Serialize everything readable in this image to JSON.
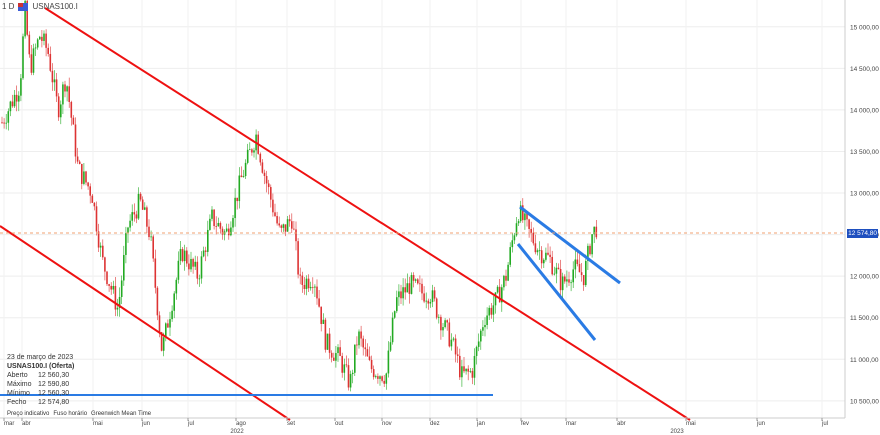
{
  "toolbar": {
    "interval": "1 D",
    "symbol": "USNAS100.I"
  },
  "info": {
    "date": "23 de março de 2023",
    "title": "USNAS100.I (Oferta)",
    "rows": [
      {
        "label": "Aberto",
        "value": "12 560,30"
      },
      {
        "label": "Máximo",
        "value": "12 590,80"
      },
      {
        "label": "Mínimo",
        "value": "12 560,30"
      },
      {
        "label": "Fecho",
        "value": "12 574,80"
      }
    ]
  },
  "footer": {
    "price": "Preço indicativo",
    "tz": "Fuso horário",
    "gmt": "Greenwich Mean Time"
  },
  "current_price_label": "12 574,80",
  "colors": {
    "up": "#22aa22",
    "down": "#dd3333",
    "channel": "#ee1111",
    "pattern": "#2a7be4",
    "price": "#1e4fbf"
  },
  "chart_data": {
    "type": "candlestick",
    "symbol": "USNAS100.I",
    "x_ticks": [
      "mar",
      "abr",
      "mai",
      "jun",
      "jul",
      "ago",
      "set",
      "out",
      "nov",
      "dez",
      "jan",
      "fev",
      "mar",
      "abr",
      "mai",
      "jun",
      "jul"
    ],
    "year_labels": [
      "2022",
      "2023"
    ],
    "y_ticks": [
      "10 500,00",
      "11 000,00",
      "11 500,00",
      "12 000,00",
      "12 500,00",
      "13 000,00",
      "13 500,00",
      "14 000,00",
      "14 500,00",
      "15 000,00"
    ],
    "ylim": [
      10450,
      15250
    ],
    "current_price": 12574.8,
    "anchors": [
      [
        0,
        13800
      ],
      [
        20,
        14300
      ],
      [
        25,
        15200
      ],
      [
        30,
        14500
      ],
      [
        40,
        14900
      ],
      [
        48,
        14700
      ],
      [
        58,
        14000
      ],
      [
        66,
        14400
      ],
      [
        78,
        13300
      ],
      [
        92,
        13000
      ],
      [
        102,
        12200
      ],
      [
        118,
        11600
      ],
      [
        128,
        12600
      ],
      [
        140,
        12900
      ],
      [
        150,
        12500
      ],
      [
        162,
        11100
      ],
      [
        172,
        11700
      ],
      [
        182,
        12300
      ],
      [
        198,
        12000
      ],
      [
        212,
        12700
      ],
      [
        226,
        12500
      ],
      [
        242,
        13200
      ],
      [
        256,
        13700
      ],
      [
        265,
        13200
      ],
      [
        280,
        12500
      ],
      [
        292,
        12700
      ],
      [
        300,
        11900
      ],
      [
        314,
        12000
      ],
      [
        326,
        11200
      ],
      [
        340,
        11000
      ],
      [
        350,
        10700
      ],
      [
        358,
        11300
      ],
      [
        370,
        10900
      ],
      [
        386,
        10800
      ],
      [
        396,
        11700
      ],
      [
        410,
        11900
      ],
      [
        422,
        11800
      ],
      [
        430,
        11800
      ],
      [
        440,
        11500
      ],
      [
        452,
        11200
      ],
      [
        462,
        10800
      ],
      [
        472,
        10850
      ],
      [
        484,
        11500
      ],
      [
        496,
        11700
      ],
      [
        506,
        12000
      ],
      [
        518,
        12800
      ],
      [
        530,
        12500
      ],
      [
        540,
        12300
      ],
      [
        550,
        12200
      ],
      [
        562,
        11900
      ],
      [
        574,
        12100
      ],
      [
        584,
        12000
      ],
      [
        592,
        12500
      ],
      [
        597,
        12600
      ]
    ]
  }
}
